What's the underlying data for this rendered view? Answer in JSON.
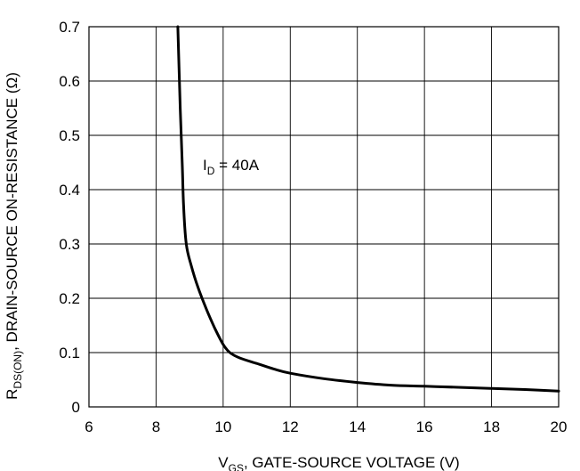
{
  "chart_data": {
    "type": "line",
    "xlabel": {
      "main": "V",
      "sub": "GS",
      "rest": ", GATE-SOURCE VOLTAGE (V)"
    },
    "ylabel": {
      "main": "R",
      "sub": "DS(ON)",
      "rest": ", DRAIN-SOURCE ON-RESISTANCE (Ω)"
    },
    "xlim": [
      6,
      20
    ],
    "ylim": [
      0,
      0.7
    ],
    "x_ticks": [
      "6",
      "8",
      "10",
      "12",
      "14",
      "16",
      "18",
      "20"
    ],
    "y_ticks": [
      "0",
      "0.1",
      "0.2",
      "0.3",
      "0.4",
      "0.5",
      "0.6",
      "0.7"
    ],
    "grid": true,
    "annotation": {
      "main": "I",
      "sub": "D",
      "rest": " = 40A"
    },
    "series": [
      {
        "x": [
          8.65,
          8.72,
          8.78,
          8.82,
          8.9,
          9.05,
          9.25,
          9.5,
          9.75,
          10.0,
          10.2,
          10.5,
          11.0,
          11.5,
          12.0,
          13.0,
          14.0,
          15.0,
          16.0,
          17.0,
          18.0,
          19.0,
          20.0
        ],
        "y": [
          0.7,
          0.55,
          0.45,
          0.37,
          0.3,
          0.26,
          0.22,
          0.18,
          0.145,
          0.115,
          0.1,
          0.09,
          0.08,
          0.07,
          0.062,
          0.052,
          0.045,
          0.04,
          0.038,
          0.036,
          0.034,
          0.032,
          0.029
        ]
      }
    ]
  }
}
